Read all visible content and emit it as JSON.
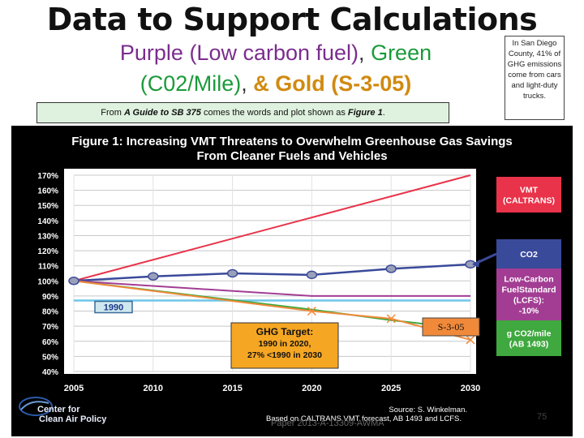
{
  "slide": {
    "title": "Data to Support Calculations",
    "subtitle_parts": [
      "Purple (Low carbon fuel)",
      ", ",
      "Green",
      " (C02/Mile)",
      ", ",
      "& Gold (S-3-05)"
    ],
    "note": "In San Diego County, 41% of GHG emissions come from cars and light-duty trucks.",
    "caption_pre": "From ",
    "caption_ref": "A Guide to SB 375",
    "caption_mid": " comes the words and plot shown as ",
    "caption_fig": "Figure 1",
    "caption_end": ".",
    "page_number": "75",
    "paper_ref": "Paper 2013-A-13309-AWMA"
  },
  "colors": {
    "background": "#000000",
    "panel": "#ffffff",
    "vmt": "#e8334a",
    "co2": "#3a4a9a",
    "lcfs": "#a23d93",
    "gco2": "#3fa83f",
    "s305": "#f08a3a",
    "ghg_target": "#f5a623",
    "baseline": "#6ec6e8"
  },
  "chart_data": {
    "type": "line",
    "title": "Figure 1: Increasing VMT Threatens to Overwhelm Greenhouse Gas Savings From Cleaner Fuels and Vehicles",
    "xlabel": "",
    "ylabel": "",
    "x": [
      2005,
      2010,
      2015,
      2020,
      2025,
      2030
    ],
    "xlim": [
      2005,
      2030
    ],
    "ylim": [
      40,
      170
    ],
    "y_ticks": [
      "170%",
      "160%",
      "150%",
      "140%",
      "130%",
      "120%",
      "110%",
      "100%",
      "90%",
      "80%",
      "70%",
      "60%",
      "50%",
      "40%"
    ],
    "x_ticks": [
      "2005",
      "2010",
      "2015",
      "2020",
      "2025",
      "2030"
    ],
    "grid": true,
    "series": [
      {
        "name": "VMT (CALTRANS)",
        "x": [
          2005,
          2030
        ],
        "values": [
          100,
          170
        ]
      },
      {
        "name": "CO2",
        "x": [
          2005,
          2010,
          2015,
          2020,
          2025,
          2030
        ],
        "values": [
          100,
          103,
          105,
          104,
          108,
          111
        ]
      },
      {
        "name": "Low-Carbon FuelStandard (LCFS): -10%",
        "x": [
          2005,
          2020,
          2030
        ],
        "values": [
          100,
          90,
          90
        ]
      },
      {
        "name": "g CO2/mile (AB 1493)",
        "x": [
          2005,
          2020,
          2025,
          2030
        ],
        "values": [
          100,
          81,
          74,
          68
        ]
      },
      {
        "name": "S-3-05",
        "x": [
          2005,
          2020,
          2025,
          2030
        ],
        "values": [
          100,
          80,
          75,
          61
        ]
      }
    ],
    "baseline_value": 87,
    "baseline_label": "1990",
    "legend_labels": [
      "VMT (CALTRANS)",
      "CO2",
      "Low-Carbon FuelStandard (LCFS): -10%",
      "g CO2/mile (AB 1493)"
    ],
    "annotations": {
      "s305_label": "S-3-05",
      "ghg_target": [
        "GHG Target:",
        "1990 in 2020,",
        "27% <1990 in 2030"
      ],
      "source_lines": [
        "Source: S. Winkelman.",
        "Based on CALTRANS VMT forecast, AB 1493 and LCFS."
      ],
      "logo_lines": [
        "Center for",
        "Clean Air Policy"
      ]
    }
  }
}
